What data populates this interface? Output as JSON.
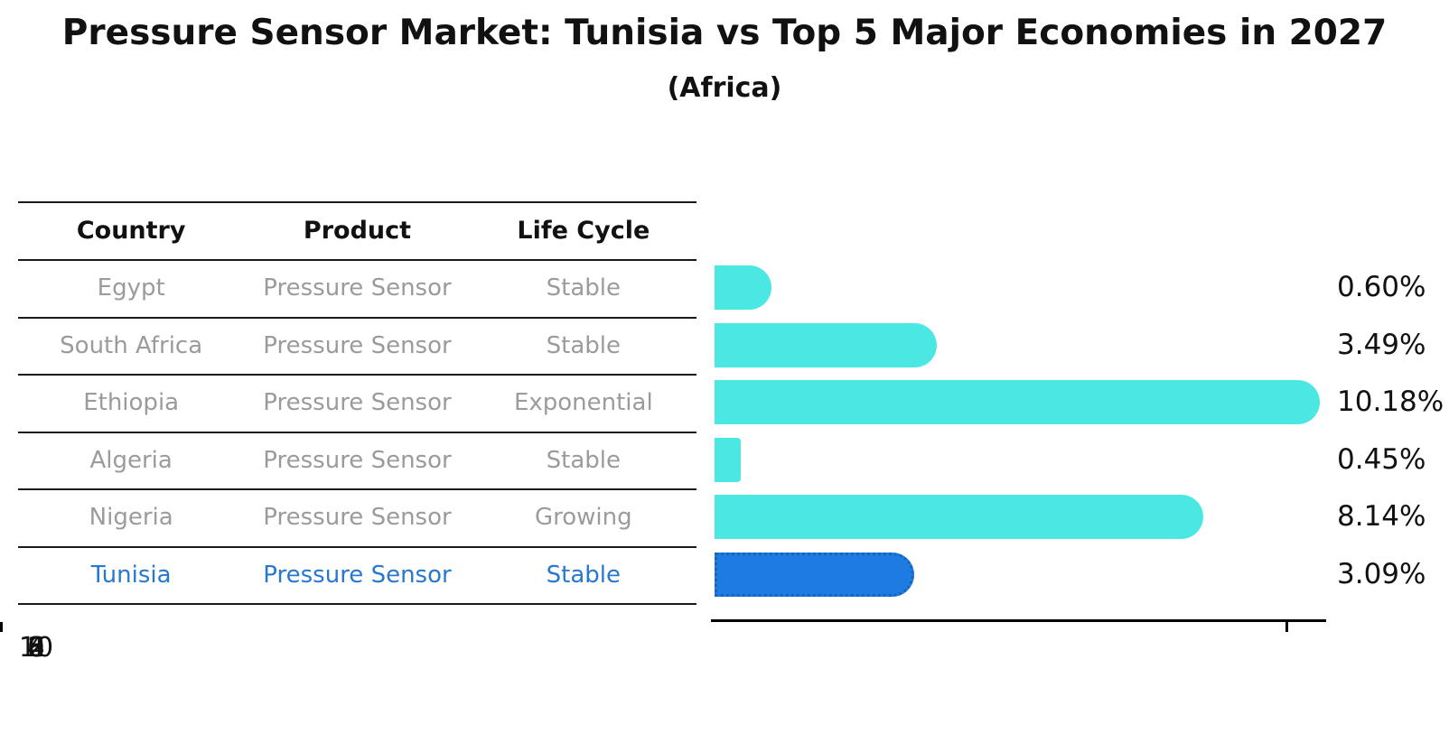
{
  "title": "Pressure Sensor Market: Tunisia vs Top 5 Major Economies in 2027",
  "subtitle": "(Africa)",
  "table": {
    "headers": [
      "Country",
      "Product",
      "Life Cycle"
    ],
    "rows": [
      {
        "country": "Egypt",
        "product": "Pressure Sensor",
        "life_cycle": "Stable",
        "highlight": false
      },
      {
        "country": "South Africa",
        "product": "Pressure Sensor",
        "life_cycle": "Stable",
        "highlight": false
      },
      {
        "country": "Ethiopia",
        "product": "Pressure Sensor",
        "life_cycle": "Exponential",
        "highlight": false
      },
      {
        "country": "Algeria",
        "product": "Pressure Sensor",
        "life_cycle": "Stable",
        "highlight": false
      },
      {
        "country": "Nigeria",
        "product": "Pressure Sensor",
        "life_cycle": "Growing",
        "highlight": false
      },
      {
        "country": "Tunisia",
        "product": "Pressure Sensor",
        "life_cycle": "Stable",
        "highlight": true
      }
    ]
  },
  "chart_data": {
    "type": "bar",
    "orientation": "horizontal",
    "title": "Pressure Sensor Market: Tunisia vs Top 5 Major Economies in 2027",
    "subtitle": "(Africa)",
    "categories": [
      "Egypt",
      "South Africa",
      "Ethiopia",
      "Algeria",
      "Nigeria",
      "Tunisia"
    ],
    "values": [
      0.6,
      3.49,
      10.18,
      0.45,
      8.14,
      3.09
    ],
    "labels": [
      "0.60%",
      "3.49%",
      "10.18%",
      "0.45%",
      "8.14%",
      "3.09%"
    ],
    "xticks": [
      "0",
      "2",
      "4",
      "6",
      "8",
      "10"
    ],
    "xlim": [
      0,
      10.7
    ],
    "grid": false,
    "legend": false,
    "highlight": "Tunisia",
    "bar_color": "#4BE8E3",
    "highlight_bar_color": "#1E7BE1",
    "highlight_border_color": "#1565C0",
    "row_text_color": "#9b9b9b",
    "highlight_text_color": "#2878d0"
  }
}
